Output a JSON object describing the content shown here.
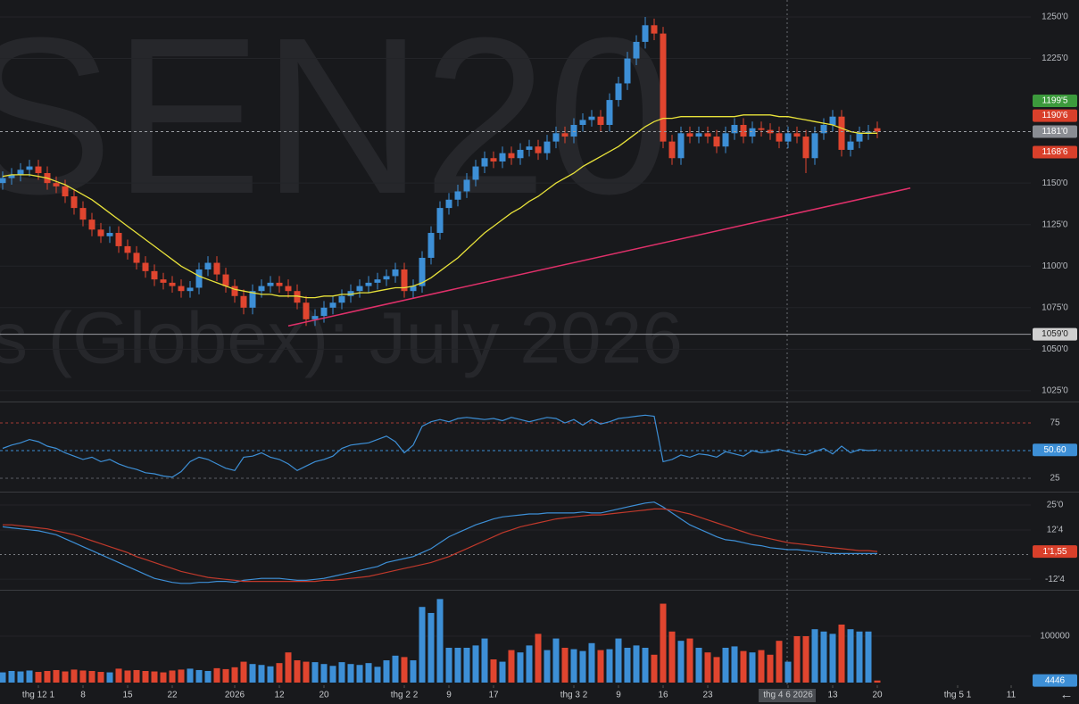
{
  "chart_data": [
    {
      "type": "candlestick",
      "watermark": [
        "SEN20",
        "s (Globex): July 2026"
      ],
      "xlim": [
        -0.3,
        115.2
      ],
      "ylim": [
        1018.5,
        1260.2
      ],
      "yticks": [
        {
          "value": 1250,
          "label": "1250'0"
        },
        {
          "value": 1225,
          "label": "1225'0"
        },
        {
          "value": 1150,
          "label": "1150'0"
        },
        {
          "value": 1125,
          "label": "1125'0"
        },
        {
          "value": 1100,
          "label": "1100'0"
        },
        {
          "value": 1075,
          "label": "1075'0"
        },
        {
          "value": 1050,
          "label": "1050'0"
        },
        {
          "value": 1025,
          "label": "1025'0"
        }
      ],
      "up_color": "#3d8fd6",
      "down_color": "#e0452f",
      "open": [
        1150,
        1153,
        1155,
        1158,
        1160,
        1156,
        1150,
        1148,
        1142,
        1135,
        1128,
        1122,
        1118,
        1120,
        1112,
        1108,
        1102,
        1097,
        1092,
        1090,
        1088,
        1085,
        1087,
        1098,
        1102,
        1095,
        1088,
        1082,
        1075,
        1085,
        1088,
        1090,
        1088,
        1085,
        1078,
        1068,
        1070,
        1075,
        1078,
        1082,
        1085,
        1088,
        1090,
        1092,
        1094,
        1098,
        1085,
        1088,
        1105,
        1120,
        1135,
        1140,
        1145,
        1152,
        1160,
        1165,
        1163,
        1168,
        1165,
        1170,
        1172,
        1168,
        1175,
        1180,
        1178,
        1185,
        1188,
        1190,
        1185,
        1200,
        1210,
        1225,
        1235,
        1245,
        1240,
        1175,
        1165,
        1180,
        1178,
        1180,
        1178,
        1172,
        1180,
        1185,
        1178,
        1183,
        1182,
        1180,
        1175,
        1180,
        1178,
        1165,
        1180,
        1185,
        1190,
        1170,
        1175,
        1180,
        1183
      ],
      "high": [
        1157,
        1159,
        1162,
        1164,
        1164,
        1160,
        1154,
        1152,
        1146,
        1139,
        1132,
        1126,
        1124,
        1124,
        1116,
        1112,
        1106,
        1101,
        1096,
        1094,
        1092,
        1091,
        1102,
        1106,
        1106,
        1099,
        1092,
        1086,
        1089,
        1092,
        1094,
        1094,
        1092,
        1089,
        1082,
        1074,
        1079,
        1082,
        1086,
        1089,
        1092,
        1094,
        1096,
        1098,
        1102,
        1102,
        1092,
        1109,
        1124,
        1139,
        1144,
        1149,
        1156,
        1164,
        1169,
        1169,
        1172,
        1172,
        1174,
        1176,
        1176,
        1179,
        1184,
        1184,
        1189,
        1192,
        1194,
        1194,
        1204,
        1214,
        1229,
        1239,
        1250,
        1249,
        1244,
        1179,
        1184,
        1184,
        1184,
        1184,
        1182,
        1184,
        1189,
        1189,
        1187,
        1187,
        1186,
        1184,
        1184,
        1184,
        1182,
        1184,
        1189,
        1194,
        1194,
        1179,
        1184,
        1185,
        1187
      ],
      "low": [
        1146,
        1149,
        1151,
        1154,
        1152,
        1146,
        1144,
        1138,
        1131,
        1124,
        1118,
        1114,
        1114,
        1108,
        1104,
        1098,
        1093,
        1088,
        1086,
        1084,
        1081,
        1081,
        1083,
        1094,
        1091,
        1084,
        1078,
        1071,
        1071,
        1081,
        1084,
        1084,
        1081,
        1074,
        1064,
        1064,
        1066,
        1071,
        1074,
        1078,
        1081,
        1084,
        1086,
        1088,
        1090,
        1081,
        1081,
        1084,
        1101,
        1116,
        1131,
        1136,
        1141,
        1148,
        1156,
        1159,
        1159,
        1161,
        1161,
        1166,
        1164,
        1164,
        1171,
        1174,
        1174,
        1181,
        1184,
        1181,
        1181,
        1196,
        1206,
        1221,
        1231,
        1236,
        1171,
        1161,
        1161,
        1174,
        1174,
        1174,
        1168,
        1168,
        1176,
        1174,
        1174,
        1178,
        1176,
        1171,
        1171,
        1174,
        1156,
        1161,
        1176,
        1181,
        1166,
        1166,
        1171,
        1176,
        1177
      ],
      "close": [
        1153,
        1155,
        1158,
        1160,
        1156,
        1150,
        1148,
        1142,
        1135,
        1128,
        1122,
        1118,
        1120,
        1112,
        1108,
        1102,
        1097,
        1092,
        1090,
        1088,
        1085,
        1087,
        1098,
        1102,
        1095,
        1088,
        1082,
        1075,
        1085,
        1088,
        1090,
        1088,
        1085,
        1078,
        1068,
        1070,
        1075,
        1078,
        1082,
        1085,
        1088,
        1090,
        1092,
        1094,
        1098,
        1085,
        1088,
        1105,
        1120,
        1135,
        1140,
        1145,
        1152,
        1160,
        1165,
        1163,
        1168,
        1165,
        1170,
        1172,
        1168,
        1175,
        1180,
        1178,
        1185,
        1188,
        1190,
        1185,
        1200,
        1210,
        1225,
        1235,
        1245,
        1240,
        1175,
        1165,
        1180,
        1178,
        1180,
        1178,
        1172,
        1180,
        1185,
        1178,
        1183,
        1182,
        1180,
        1175,
        1180,
        1178,
        1165,
        1180,
        1185,
        1190,
        1170,
        1175,
        1180,
        1181,
        1181
      ],
      "overlays": [
        {
          "color": "#e8e23a",
          "values": [
            1154,
            1155,
            1155,
            1155,
            1154,
            1153,
            1151,
            1149,
            1146,
            1143,
            1140,
            1136,
            1132,
            1128,
            1124,
            1120,
            1116,
            1112,
            1108,
            1104,
            1100,
            1097,
            1094,
            1092,
            1090,
            1088,
            1086,
            1085,
            1084,
            1083,
            1083,
            1082,
            1082,
            1082,
            1081,
            1081,
            1082,
            1082,
            1083,
            1083,
            1084,
            1084,
            1085,
            1086,
            1087,
            1087,
            1088,
            1090,
            1093,
            1097,
            1101,
            1105,
            1110,
            1115,
            1120,
            1124,
            1128,
            1132,
            1135,
            1139,
            1142,
            1146,
            1150,
            1153,
            1156,
            1160,
            1163,
            1166,
            1169,
            1172,
            1176,
            1180,
            1184,
            1187,
            1189,
            1189,
            1190,
            1190,
            1190,
            1190,
            1190,
            1190,
            1190,
            1191,
            1191,
            1191,
            1191,
            1190,
            1190,
            1189,
            1188,
            1187,
            1186,
            1185,
            1183,
            1181,
            1180,
            1180,
            1180
          ]
        }
      ],
      "trendline": {
        "x": [
          32,
          101.7
        ],
        "y": [
          1064,
          1147
        ],
        "color": "#e0306a"
      },
      "value_badges": [
        {
          "value": 1199.5,
          "label": "1199'5",
          "color": "#3c9a3c"
        },
        {
          "value": 1190.6,
          "label": "1190'6",
          "color": "#d9402b"
        },
        {
          "value": 1181,
          "label": "1181'0",
          "color": "#8a8d93",
          "line": "dashed"
        },
        {
          "value": 1168.6,
          "label": "1168'6",
          "color": "#d9402b"
        },
        {
          "value": 1059,
          "label": "1059'0",
          "color": "#d0d0d0",
          "line": "solid"
        }
      ]
    },
    {
      "type": "line",
      "xlim": [
        -0.3,
        115.2
      ],
      "ylim": [
        13.7,
        92.7
      ],
      "yticks": [
        25,
        50,
        75
      ],
      "grid_colors": [
        "#5a5d63",
        "#3d8fd6",
        "#a33a33"
      ],
      "series": [
        {
          "color": "#3d8fd6",
          "values": [
            52,
            55,
            57,
            60,
            58,
            54,
            52,
            48,
            45,
            42,
            44,
            40,
            42,
            38,
            35,
            33,
            30,
            29,
            27,
            26,
            31,
            40,
            44,
            42,
            38,
            34,
            32,
            44,
            45,
            48,
            44,
            42,
            38,
            32,
            36,
            40,
            42,
            45,
            52,
            55,
            56,
            57,
            60,
            63,
            58,
            48,
            55,
            72,
            76,
            78,
            76,
            79,
            80,
            79,
            78,
            79,
            77,
            80,
            78,
            76,
            78,
            80,
            79,
            75,
            78,
            73,
            78,
            74,
            76,
            79,
            80,
            81,
            82,
            81,
            40,
            42,
            46,
            44,
            47,
            46,
            44,
            49,
            47,
            45,
            50,
            48,
            49,
            51,
            49,
            47,
            46,
            49,
            52,
            47,
            54,
            48,
            51,
            50,
            50.6
          ]
        }
      ],
      "value_badges": [
        {
          "value": 50.6,
          "label": "50.60",
          "color": "#3d8fd6"
        }
      ]
    },
    {
      "type": "line",
      "xlim": [
        -0.3,
        115.2
      ],
      "ylim": [
        -17.3,
        31.3
      ],
      "yticks": [
        {
          "value": 25,
          "label": "25'0"
        },
        {
          "value": 12.4,
          "label": "12'4"
        },
        {
          "value": -12.4,
          "label": "-12'4"
        }
      ],
      "zero_line": 0,
      "series": [
        {
          "color": "#3d8fd6",
          "values": [
            14,
            13.5,
            13,
            12.5,
            12,
            11,
            10,
            8,
            6,
            4,
            2,
            0,
            -2,
            -4,
            -6,
            -8,
            -10,
            -12,
            -13,
            -14,
            -14.5,
            -14.5,
            -14,
            -14,
            -13.5,
            -13.5,
            -14,
            -13,
            -12.5,
            -12,
            -12,
            -12,
            -12.5,
            -13,
            -13,
            -12.5,
            -12,
            -11,
            -10,
            -9,
            -8,
            -7,
            -6,
            -4,
            -3,
            -2,
            -1,
            1,
            3,
            6,
            9,
            11,
            13,
            15,
            16.5,
            18,
            19,
            19.5,
            20,
            20.5,
            20.5,
            21,
            21,
            21,
            21,
            21.5,
            21,
            21,
            22,
            23,
            24,
            25,
            26,
            26.5,
            24,
            21,
            18,
            15,
            13,
            11,
            9,
            7.5,
            7,
            6,
            5,
            4.5,
            3.5,
            3,
            2.5,
            2.5,
            2,
            1.5,
            1,
            0.5,
            0.5,
            0.5,
            0.5,
            0.5,
            0.5
          ]
        },
        {
          "color": "#c0392b",
          "values": [
            15,
            15,
            14.5,
            14,
            13.5,
            13,
            12,
            11,
            10,
            8.5,
            7,
            5.5,
            4,
            2.5,
            1,
            -1,
            -2.5,
            -4,
            -5.5,
            -7,
            -8.5,
            -9.5,
            -10.5,
            -11.5,
            -12,
            -12.5,
            -13,
            -13.5,
            -13.5,
            -13.5,
            -13.5,
            -13.5,
            -13.5,
            -13.5,
            -13.5,
            -13.5,
            -13,
            -13,
            -12.5,
            -12,
            -11.5,
            -11,
            -10,
            -9,
            -8,
            -7,
            -6,
            -5,
            -4,
            -2.5,
            -1,
            1,
            3,
            5,
            7,
            9,
            11,
            12.5,
            14,
            15,
            16,
            17,
            18,
            18.5,
            19,
            19.5,
            20,
            20,
            20.5,
            21,
            21.5,
            22,
            22.5,
            23,
            23,
            22.5,
            21.5,
            20.5,
            19,
            17.5,
            16,
            14.5,
            13,
            11.5,
            10,
            9,
            8,
            7,
            6,
            5.5,
            5,
            4.5,
            4,
            3.5,
            3,
            2.5,
            2,
            2,
            1.55
          ]
        }
      ],
      "value_badges": [
        {
          "value": 1.55,
          "label": "1'1,55",
          "color": "#d9402b"
        }
      ]
    },
    {
      "type": "bar",
      "xlim": [
        -0.3,
        115.2
      ],
      "ylim": [
        0,
        198000
      ],
      "yticks": [
        100000
      ],
      "values": [
        22000,
        25000,
        24000,
        26000,
        23000,
        25000,
        27000,
        24000,
        28000,
        26000,
        25000,
        23000,
        22000,
        30000,
        26000,
        27000,
        25000,
        24000,
        22000,
        26000,
        28000,
        30000,
        27000,
        25000,
        31000,
        29000,
        33000,
        45000,
        40000,
        38000,
        35000,
        42000,
        65000,
        48000,
        45000,
        44000,
        40000,
        36000,
        44000,
        40000,
        38000,
        42000,
        34000,
        48000,
        58000,
        55000,
        48000,
        163000,
        150000,
        180000,
        75000,
        75000,
        75000,
        80000,
        95000,
        50000,
        45000,
        70000,
        65000,
        80000,
        105000,
        70000,
        95000,
        75000,
        72000,
        68000,
        85000,
        70000,
        72000,
        95000,
        75000,
        80000,
        75000,
        60000,
        170000,
        110000,
        90000,
        95000,
        75000,
        65000,
        55000,
        75000,
        78000,
        68000,
        65000,
        70000,
        60000,
        90000,
        45000,
        100000,
        100000,
        115000,
        110000,
        105000,
        125000,
        115000,
        110000,
        110000,
        4446
      ],
      "xticks": [
        {
          "value": 4,
          "label": "thg 12 1"
        },
        {
          "value": 9,
          "label": "8"
        },
        {
          "value": 14,
          "label": "15"
        },
        {
          "value": 19,
          "label": "22"
        },
        {
          "value": 26,
          "label": "2026"
        },
        {
          "value": 31,
          "label": "12"
        },
        {
          "value": 36,
          "label": "20"
        },
        {
          "value": 45,
          "label": "thg 2 2"
        },
        {
          "value": 50,
          "label": "9"
        },
        {
          "value": 55,
          "label": "17"
        },
        {
          "value": 64,
          "label": "thg 3 2"
        },
        {
          "value": 69,
          "label": "9"
        },
        {
          "value": 74,
          "label": "16"
        },
        {
          "value": 79,
          "label": "23"
        },
        {
          "value": 88,
          "label": "thg 4 6 2026"
        },
        {
          "value": 93,
          "label": "13"
        },
        {
          "value": 98,
          "label": "20"
        },
        {
          "value": 107,
          "label": "thg 5 1"
        },
        {
          "value": 113,
          "label": "11"
        }
      ],
      "value_badges": [
        {
          "value": 4446,
          "label": "4446",
          "color": "#3d8fd6"
        }
      ]
    }
  ]
}
